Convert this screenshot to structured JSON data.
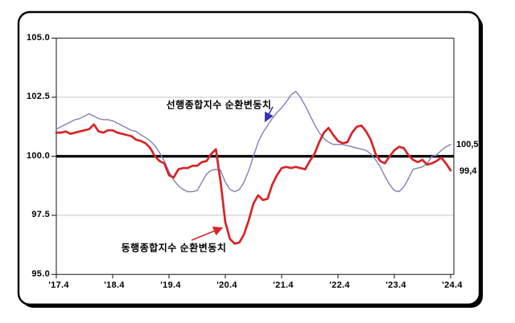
{
  "chart_data": {
    "type": "line",
    "title": "",
    "grid": "horizontal",
    "ylim": [
      95.0,
      105.0
    ],
    "baseline": 100.0,
    "ytick_labels": [
      "105.0",
      "102.5",
      "100.0",
      "97.5",
      "95.0"
    ],
    "xtick_labels": [
      "'17.4",
      "'18.4",
      "'19.4",
      "'20.4",
      "'21.4",
      "'22.4",
      "'23.4",
      "'24.4"
    ],
    "x": [
      "2017-04",
      "2017-05",
      "2017-06",
      "2017-07",
      "2017-08",
      "2017-09",
      "2017-10",
      "2017-11",
      "2017-12",
      "2018-01",
      "2018-02",
      "2018-03",
      "2018-04",
      "2018-05",
      "2018-06",
      "2018-07",
      "2018-08",
      "2018-09",
      "2018-10",
      "2018-11",
      "2018-12",
      "2019-01",
      "2019-02",
      "2019-03",
      "2019-04",
      "2019-05",
      "2019-06",
      "2019-07",
      "2019-08",
      "2019-09",
      "2019-10",
      "2019-11",
      "2019-12",
      "2020-01",
      "2020-02",
      "2020-03",
      "2020-04",
      "2020-05",
      "2020-06",
      "2020-07",
      "2020-08",
      "2020-09",
      "2020-10",
      "2020-11",
      "2020-12",
      "2021-01",
      "2021-02",
      "2021-03",
      "2021-04",
      "2021-05",
      "2021-06",
      "2021-07",
      "2021-08",
      "2021-09",
      "2021-10",
      "2021-11",
      "2021-12",
      "2022-01",
      "2022-02",
      "2022-03",
      "2022-04",
      "2022-05",
      "2022-06",
      "2022-07",
      "2022-08",
      "2022-09",
      "2022-10",
      "2022-11",
      "2022-12",
      "2023-01",
      "2023-02",
      "2023-03",
      "2023-04",
      "2023-05",
      "2023-06",
      "2023-07",
      "2023-08",
      "2023-09",
      "2023-10",
      "2023-11",
      "2023-12",
      "2024-01",
      "2024-02",
      "2024-03",
      "2024-04"
    ],
    "series": [
      {
        "key": "leading",
        "name": "선행종합지수 순환변동치",
        "color": "#8080ba",
        "width": 1.4,
        "values": [
          101.15,
          101.25,
          101.35,
          101.45,
          101.55,
          101.6,
          101.7,
          101.8,
          101.7,
          101.6,
          101.55,
          101.55,
          101.5,
          101.4,
          101.3,
          101.2,
          101.1,
          101.05,
          100.9,
          100.8,
          100.65,
          100.45,
          100.15,
          99.8,
          99.35,
          99.0,
          98.75,
          98.6,
          98.5,
          98.5,
          98.55,
          98.9,
          99.25,
          99.4,
          99.45,
          99.4,
          98.9,
          98.6,
          98.5,
          98.6,
          98.9,
          99.4,
          100.0,
          100.6,
          101.0,
          101.3,
          101.6,
          101.85,
          102.05,
          102.3,
          102.6,
          102.75,
          102.5,
          102.15,
          101.75,
          101.35,
          101.0,
          100.75,
          100.6,
          100.5,
          100.5,
          100.5,
          100.45,
          100.4,
          100.35,
          100.3,
          100.25,
          100.1,
          99.85,
          99.55,
          99.15,
          98.8,
          98.55,
          98.5,
          98.7,
          99.05,
          99.45,
          99.5,
          99.55,
          99.7,
          100.0,
          100.05,
          100.25,
          100.4,
          100.5
        ]
      },
      {
        "key": "coincident",
        "name": "동행종합지수 순환변동치",
        "color": "#d62427",
        "width": 2.7,
        "values": [
          101.0,
          101.0,
          101.05,
          100.95,
          101.0,
          101.05,
          101.1,
          101.15,
          101.35,
          101.05,
          101.0,
          101.1,
          101.1,
          101.0,
          100.95,
          100.9,
          100.85,
          100.7,
          100.65,
          100.55,
          100.35,
          100.0,
          99.8,
          99.7,
          99.2,
          99.1,
          99.45,
          99.5,
          99.5,
          99.6,
          99.6,
          99.75,
          99.8,
          100.1,
          100.3,
          98.9,
          97.2,
          96.5,
          96.3,
          96.35,
          96.7,
          97.3,
          98.0,
          98.35,
          98.15,
          98.2,
          98.8,
          99.2,
          99.5,
          99.55,
          99.5,
          99.55,
          99.5,
          99.45,
          99.8,
          100.1,
          100.6,
          101.0,
          101.2,
          100.9,
          100.65,
          100.55,
          100.6,
          101.0,
          101.25,
          101.3,
          101.05,
          100.7,
          100.1,
          99.8,
          99.7,
          100.0,
          100.25,
          100.4,
          100.35,
          100.05,
          99.85,
          99.75,
          99.85,
          99.65,
          99.7,
          99.8,
          99.95,
          99.7,
          99.4
        ]
      }
    ],
    "annotations": [
      {
        "key": "leading",
        "text": "선행종합지수 순환변동치",
        "arrow_color": "#3333b0"
      },
      {
        "key": "coincident",
        "text": "동행종합지수 순환변동치",
        "arrow_color": "#d62427"
      }
    ],
    "end_labels": {
      "leading": "100,5",
      "coincident": "99,4"
    },
    "last_values": {
      "leading": 100.5,
      "coincident": 99.4
    },
    "legend_position": "inline-annotations"
  }
}
